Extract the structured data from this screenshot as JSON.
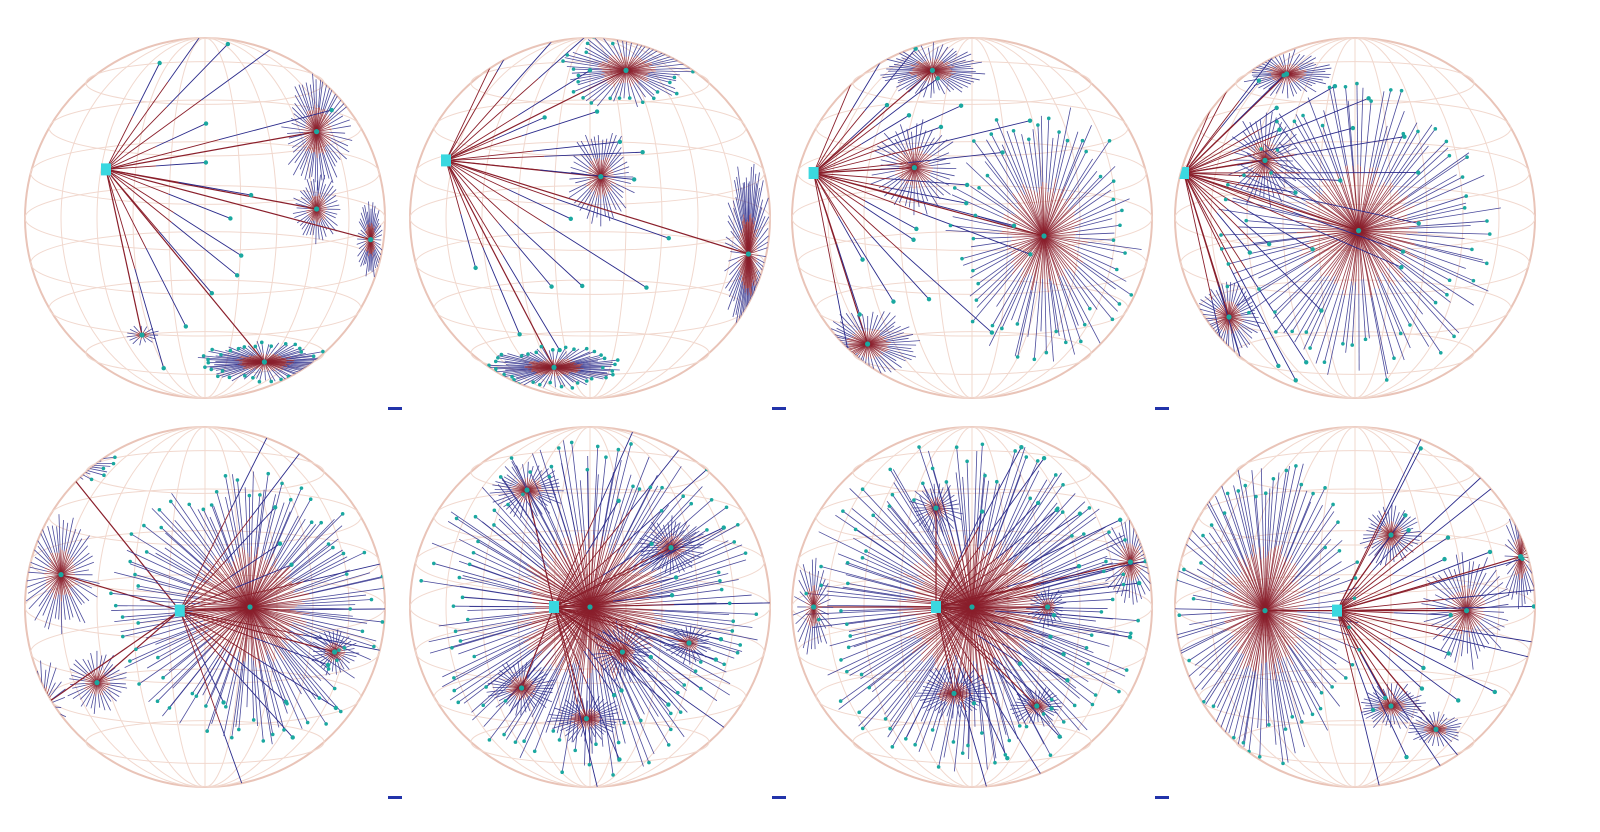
{
  "figure": {
    "layout": {
      "rows": 2,
      "columns": 4
    },
    "colors": {
      "background": "#ffffff",
      "sphere_outline": "#e9c4b8",
      "grid_lines": "#f1d8ce",
      "edge_near_hub": "#8a1f2b",
      "edge_far": "#2a2a8a",
      "node": "#1aa8a0",
      "root_node": "#3ad8e0",
      "separator_mark": "#2233aa"
    },
    "separator_marks": 6,
    "panels": [
      {
        "id": "row1-col1",
        "root_side": "left",
        "clusters": 5
      },
      {
        "id": "row1-col2",
        "root_side": "right",
        "clusters": 4
      },
      {
        "id": "row1-col3",
        "root_side": "center-right",
        "clusters": 4
      },
      {
        "id": "row1-col4",
        "root_side": "center-right",
        "clusters": 4
      },
      {
        "id": "row2-col1",
        "root_side": "center-left",
        "clusters": 6
      },
      {
        "id": "row2-col2",
        "root_side": "center",
        "clusters": 7
      },
      {
        "id": "row2-col3",
        "root_side": "center",
        "clusters": 7
      },
      {
        "id": "row2-col4",
        "root_side": "center",
        "clusters": 5
      }
    ]
  }
}
